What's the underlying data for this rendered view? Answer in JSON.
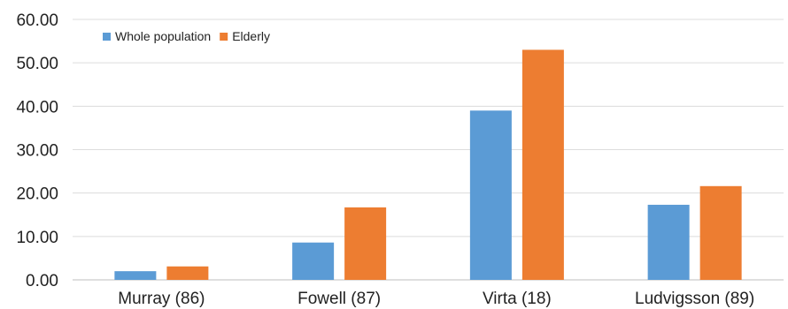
{
  "chart_data": {
    "type": "bar",
    "title": "",
    "xlabel": "",
    "ylabel": "",
    "categories": [
      "Murray (86)",
      "Fowell (87)",
      "Virta (18)",
      "Ludvigsson (89)"
    ],
    "series": [
      {
        "name": "Whole population",
        "color": "#5b9bd5",
        "values": [
          2.0,
          8.6,
          39.0,
          17.3
        ]
      },
      {
        "name": "Elderly",
        "color": "#ed7d31",
        "values": [
          3.1,
          16.7,
          53.0,
          21.6
        ]
      }
    ],
    "ylim": [
      0,
      60
    ],
    "yticks": [
      "0.00",
      "10.00",
      "20.00",
      "30.00",
      "40.00",
      "50.00",
      "60.00"
    ],
    "grid": true,
    "legend": "top-left"
  }
}
